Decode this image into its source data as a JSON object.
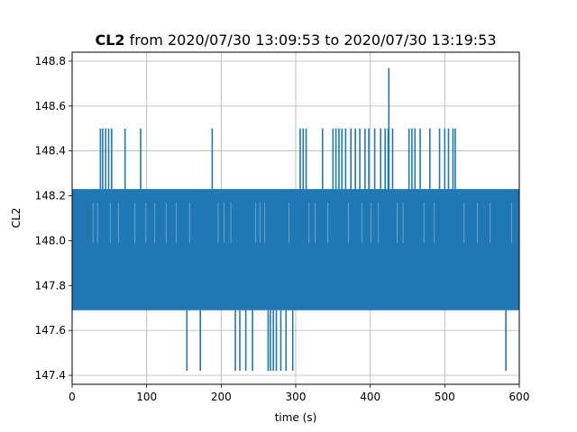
{
  "chart_data": {
    "type": "line",
    "title_bold": "CL2",
    "title_rest": " from 2020/07/30 13:09:53 to 2020/07/30 13:19:53",
    "xlabel": "time (s)",
    "ylabel": "CL2",
    "xlim": [
      0,
      600
    ],
    "ylim": [
      147.36,
      148.84
    ],
    "xticks": [
      0,
      100,
      200,
      300,
      400,
      500,
      600
    ],
    "yticks": [
      147.4,
      147.6,
      147.8,
      148.0,
      148.2,
      148.4,
      148.6,
      148.8
    ],
    "ytick_labels": [
      "147.4",
      "147.6",
      "147.8",
      "148.0",
      "148.2",
      "148.4",
      "148.6",
      "148.8"
    ],
    "grid": true,
    "legend": "none",
    "series_color": "#1f77b4",
    "value_levels": [
      147.42,
      147.69,
      147.96,
      148.23,
      148.5,
      148.77
    ],
    "band": [
      147.69,
      148.23
    ],
    "spikes_up_to_148_5": [
      38,
      41,
      45,
      49,
      53,
      71,
      92,
      188,
      306,
      310,
      314,
      336,
      350,
      354,
      358,
      362,
      367,
      374,
      380,
      386,
      393,
      398,
      406,
      414,
      420,
      424,
      430,
      452,
      456,
      460,
      467,
      480,
      493,
      500,
      505,
      511,
      514
    ],
    "spikes_up_to_148_77": [
      425
    ],
    "spikes_down_to_147_42": [
      154,
      172,
      219,
      225,
      233,
      242,
      263,
      266,
      270,
      274,
      280,
      287,
      296,
      582
    ]
  }
}
